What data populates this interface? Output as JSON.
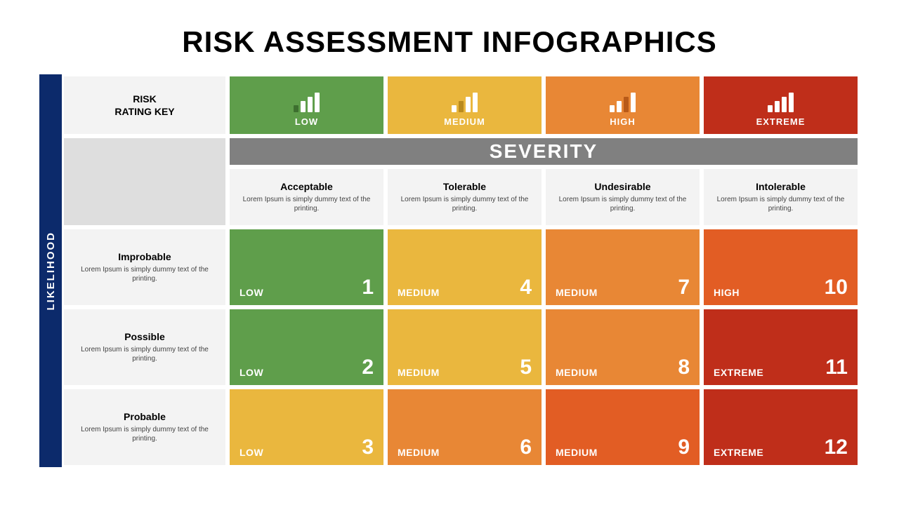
{
  "title": "RISK ASSESSMENT INFOGRAPHICS",
  "axis_labels": {
    "likelihood": "LIKELIHOOD",
    "severity": "SEVERITY"
  },
  "rating_key_label": "RISK\nRATING KEY",
  "colors": {
    "background": "#ffffff",
    "title": "#000000",
    "likelihood_bar_bg": "#0c2a6b",
    "likelihood_bar_text": "#ffffff",
    "severity_banner_bg": "#808080",
    "severity_banner_text": "#ffffff",
    "header_grey": "#f3f3f3",
    "blank_grey": "#dedede",
    "cell_border": "#ffffff",
    "desc_text": "#444444",
    "low": "#5f9e4b",
    "medium_yellow": "#eab73e",
    "medium_orange": "#e88735",
    "high": "#e25d24",
    "extreme": "#bf2e1a",
    "icon_bar": "#ffffff"
  },
  "typography": {
    "title_fontsize": 42,
    "title_weight": 900,
    "header_fontsize": 14,
    "desc_fontsize": 10,
    "severity_banner_fontsize": 28,
    "data_label_fontsize": 14,
    "data_number_fontsize": 30,
    "likelihood_fontsize": 15
  },
  "layout": {
    "slide_width": 1280,
    "slide_height": 720,
    "side_bar_width": 32,
    "row_label_col_width": 236,
    "header_row_height": 88,
    "severity_banner_height": 44,
    "desc_row_height": 86,
    "cell_border_width": 3
  },
  "severity_headers": [
    {
      "label": "LOW",
      "color": "#5f9e4b",
      "icon_highlight_index": 0,
      "icon_highlight_color": "#3d6f2f"
    },
    {
      "label": "MEDIUM",
      "color": "#eab73e",
      "icon_highlight_index": 1,
      "icon_highlight_color": "#b98a1e"
    },
    {
      "label": "HIGH",
      "color": "#e88735",
      "icon_highlight_index": 2,
      "icon_highlight_color": "#b85a18"
    },
    {
      "label": "EXTREME",
      "color": "#bf2e1a",
      "icon_highlight_index": 3,
      "icon_highlight_color": "#ffffff"
    }
  ],
  "severity_columns": [
    {
      "title": "Acceptable",
      "desc": "Lorem Ipsum is simply dummy text of the printing."
    },
    {
      "title": "Tolerable",
      "desc": "Lorem Ipsum is simply dummy text of the printing."
    },
    {
      "title": "Undesirable",
      "desc": "Lorem Ipsum is simply dummy text of the printing."
    },
    {
      "title": "Intolerable",
      "desc": "Lorem Ipsum is simply dummy text of the printing."
    }
  ],
  "likelihood_rows": [
    {
      "title": "Improbable",
      "desc": "Lorem Ipsum is simply dummy text of the printing."
    },
    {
      "title": "Possible",
      "desc": "Lorem Ipsum is simply dummy text of the printing."
    },
    {
      "title": "Probable",
      "desc": "Lorem Ipsum is simply dummy text of the printing."
    }
  ],
  "matrix": [
    [
      {
        "label": "LOW",
        "number": 1,
        "color": "#5f9e4b"
      },
      {
        "label": "MEDIUM",
        "number": 4,
        "color": "#eab73e"
      },
      {
        "label": "MEDIUM",
        "number": 7,
        "color": "#e88735"
      },
      {
        "label": "HIGH",
        "number": 10,
        "color": "#e25d24"
      }
    ],
    [
      {
        "label": "LOW",
        "number": 2,
        "color": "#5f9e4b"
      },
      {
        "label": "MEDIUM",
        "number": 5,
        "color": "#eab73e"
      },
      {
        "label": "MEDIUM",
        "number": 8,
        "color": "#e88735"
      },
      {
        "label": "EXTREME",
        "number": 11,
        "color": "#bf2e1a"
      }
    ],
    [
      {
        "label": "LOW",
        "number": 3,
        "color": "#eab73e"
      },
      {
        "label": "MEDIUM",
        "number": 6,
        "color": "#e88735"
      },
      {
        "label": "MEDIUM",
        "number": 9,
        "color": "#e25d24"
      },
      {
        "label": "EXTREME",
        "number": 12,
        "color": "#bf2e1a"
      }
    ]
  ],
  "icon_bar_heights": [
    10,
    16,
    22,
    28
  ]
}
